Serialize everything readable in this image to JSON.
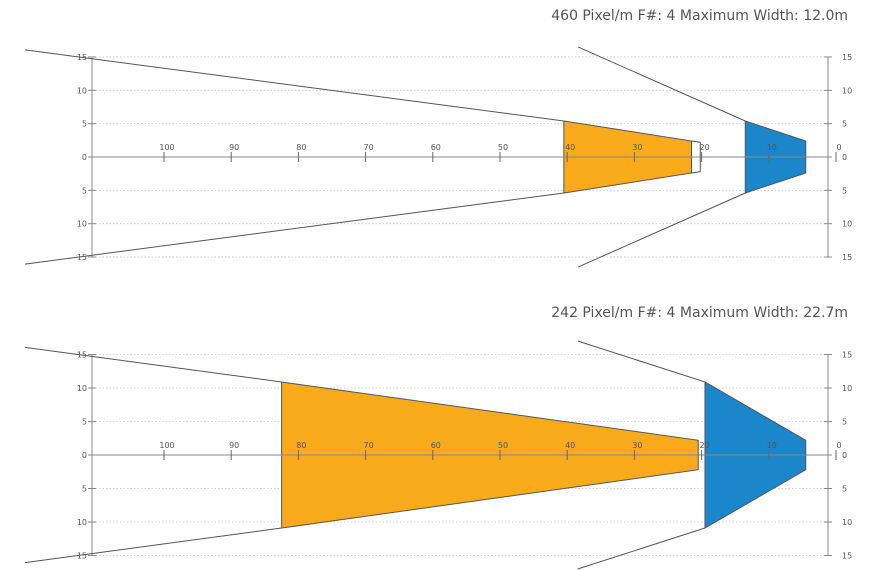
{
  "panels": [
    {
      "caption": "460 Pixel/m F#: 4 Maximum Width: 12.0m",
      "x_ticks": [
        100,
        90,
        80,
        70,
        60,
        50,
        40,
        30,
        20,
        10,
        0
      ],
      "y_ticks_left": [
        "15",
        "10",
        "5",
        "0",
        "5",
        "10",
        "15"
      ],
      "y_ticks_right": [
        "15",
        "10",
        "5",
        "0",
        "5",
        "10",
        "15"
      ],
      "y_values": [
        15,
        10,
        5,
        0,
        -5,
        -10,
        -15
      ],
      "orange_zone": {
        "far": 40.5,
        "near": 21.5,
        "half_far": 5.4,
        "half_near": 2.4
      },
      "gap_outline": {
        "far": 21.5,
        "near": 20.2,
        "half_far": 2.4,
        "half_near": 2.2
      },
      "blue_zone": {
        "far": 13.5,
        "near": 4.5,
        "half_far": 5.4,
        "half_near": 2.4
      },
      "wide_rays": {
        "far": 118,
        "half_far": 15.7
      },
      "narrow_rays": {
        "far": 13.5,
        "half_far": 5.4,
        "near": 0,
        "half_near": 16.5
      },
      "colors": {
        "orange": "#F9AB1B",
        "blue": "#1B86C9"
      }
    },
    {
      "caption": "242 Pixel/m F#: 4 Maximum Width: 22.7m",
      "x_ticks": [
        100,
        90,
        80,
        70,
        60,
        50,
        40,
        30,
        20,
        10,
        0
      ],
      "y_ticks_left": [
        "15",
        "10",
        "5",
        "0",
        "5",
        "10",
        "15"
      ],
      "y_ticks_right": [
        "15",
        "10",
        "5",
        "0",
        "5",
        "10",
        "15"
      ],
      "y_values": [
        15,
        10,
        5,
        0,
        -5,
        -10,
        -15
      ],
      "orange_zone": {
        "far": 82.5,
        "near": 20.5,
        "half_far": 10.9,
        "half_near": 2.2
      },
      "gap_outline": null,
      "blue_zone": {
        "far": 19.5,
        "near": 4.5,
        "half_far": 10.9,
        "half_near": 2.2
      },
      "wide_rays": {
        "far": 118,
        "half_far": 15.7
      },
      "narrow_rays": {
        "far": 19.5,
        "half_far": 10.9,
        "near": 0,
        "half_near": 17.0
      },
      "colors": {
        "orange": "#F9AB1B",
        "blue": "#1B86C9"
      }
    }
  ]
}
